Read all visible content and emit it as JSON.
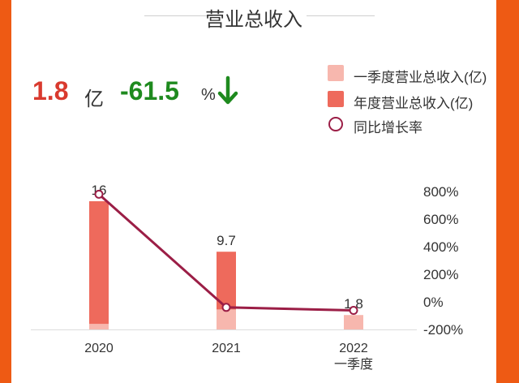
{
  "header": {
    "title": "营业总收入"
  },
  "kpi": {
    "value": "1.8",
    "value_unit": "亿",
    "change": "-61.5",
    "change_unit": "%"
  },
  "colors": {
    "background": "#ee5a14",
    "q1": "#f7b7ae",
    "annual": "#ee6a5c",
    "growth": "#9b1e46",
    "positive": "#d93a2e",
    "negative": "#1e8a1e"
  },
  "icons": {
    "change_direction": "arrow-down-icon"
  },
  "chart_data": {
    "type": "bar",
    "categories": [
      "2020",
      "2021",
      "2022\n一季度"
    ],
    "legend": [
      "一季度营业总收入(亿)",
      "年度营业总收入(亿)",
      "同比增长率"
    ],
    "series": [
      {
        "name": "一季度营业总收入(亿)",
        "type": "bar",
        "values": [
          0.7,
          2.5,
          1.8
        ]
      },
      {
        "name": "年度营业总收入(亿)",
        "type": "bar",
        "values": [
          16,
          9.7,
          null
        ]
      },
      {
        "name": "同比增长率",
        "type": "line",
        "axis": "right",
        "unit": "%",
        "values": [
          780,
          -40,
          -62
        ]
      }
    ],
    "data_labels": [
      "16",
      "9.7",
      "1.8"
    ],
    "y_right": {
      "ticks": [
        "800%",
        "600%",
        "400%",
        "200%",
        "0%",
        "-200%"
      ],
      "range": [
        -200,
        800
      ]
    },
    "ylim": [
      0,
      18
    ],
    "grid": false,
    "legend_position": "top-right"
  }
}
